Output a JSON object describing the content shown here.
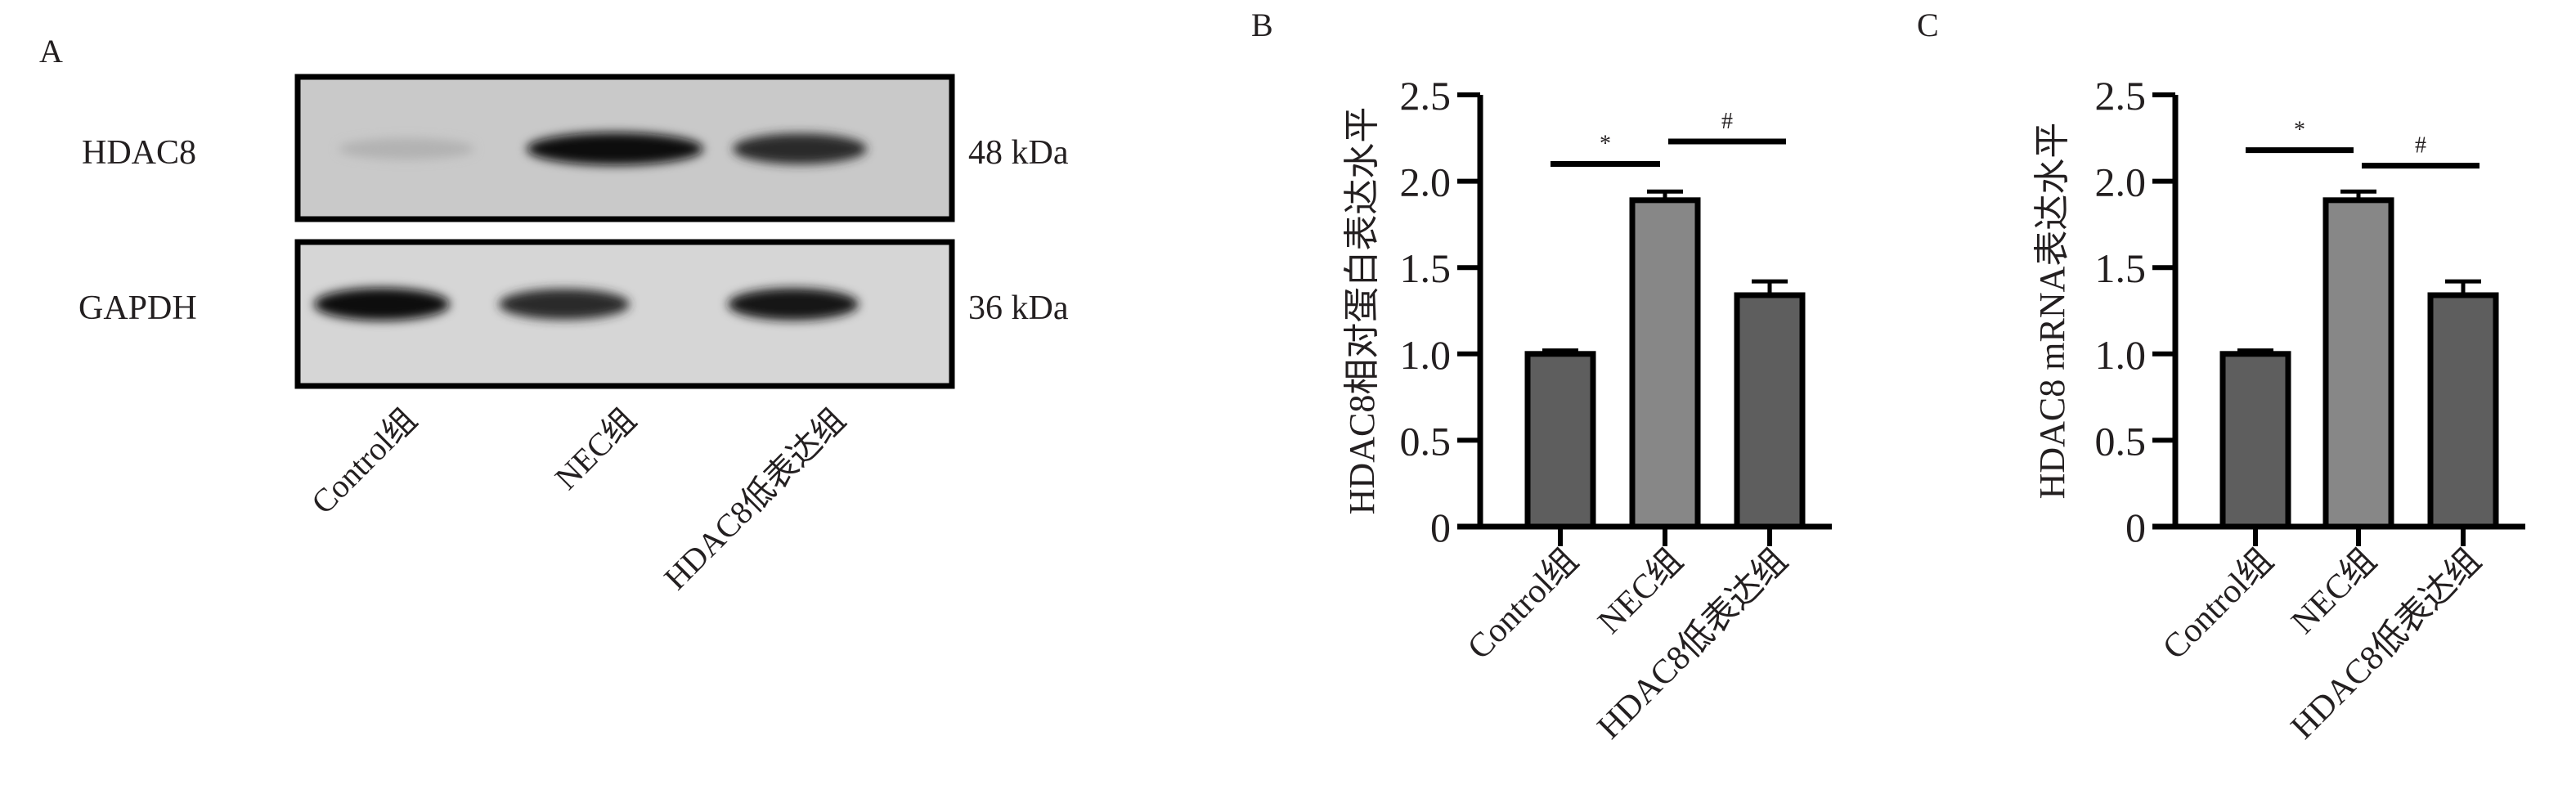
{
  "panel_a": {
    "label": "A",
    "rows": [
      {
        "protein": "HDAC8",
        "size": "48 kDa",
        "band_intensity": [
          0.12,
          1.0,
          0.85
        ]
      },
      {
        "protein": "GAPDH",
        "size": "36 kDa",
        "band_intensity": [
          1.0,
          0.85,
          0.95
        ]
      }
    ],
    "lanes": [
      "Control组",
      "NEC组",
      "HDAC8低表达组"
    ]
  },
  "chart_data": [
    {
      "panel_label": "B",
      "type": "bar",
      "title": "",
      "xlabel": "",
      "ylabel": "HDAC8相对蛋白表达水平",
      "categories": [
        "Control组",
        "NEC组",
        "HDAC8低表达组"
      ],
      "values": [
        1.0,
        1.89,
        1.34
      ],
      "errors": [
        0.02,
        0.05,
        0.08
      ],
      "colors": [
        "#5e5e5e",
        "#878787",
        "#5e5e5e"
      ],
      "ylim": [
        0,
        2.5
      ],
      "yticks": [
        "0",
        "0.5",
        "1.0",
        "1.5",
        "2.0",
        "2.5"
      ],
      "significance": [
        {
          "from": 0,
          "to": 1,
          "y": 2.1,
          "mark": "*"
        },
        {
          "from": 1,
          "to": 2,
          "y": 2.23,
          "mark": "#"
        }
      ]
    },
    {
      "panel_label": "C",
      "type": "bar",
      "title": "",
      "xlabel": "",
      "ylabel": "HDAC8 mRNA表达水平",
      "categories": [
        "Control组",
        "NEC组",
        "HDAC8低表达组"
      ],
      "values": [
        1.0,
        1.89,
        1.34
      ],
      "errors": [
        0.02,
        0.05,
        0.08
      ],
      "colors": [
        "#5e5e5e",
        "#878787",
        "#5e5e5e"
      ],
      "ylim": [
        0,
        2.5
      ],
      "yticks": [
        "0",
        "0.5",
        "1.0",
        "1.5",
        "2.0",
        "2.5"
      ],
      "significance": [
        {
          "from": 0,
          "to": 1,
          "y": 2.18,
          "mark": "*"
        },
        {
          "from": 1,
          "to": 2,
          "y": 2.09,
          "mark": "#"
        }
      ]
    }
  ]
}
